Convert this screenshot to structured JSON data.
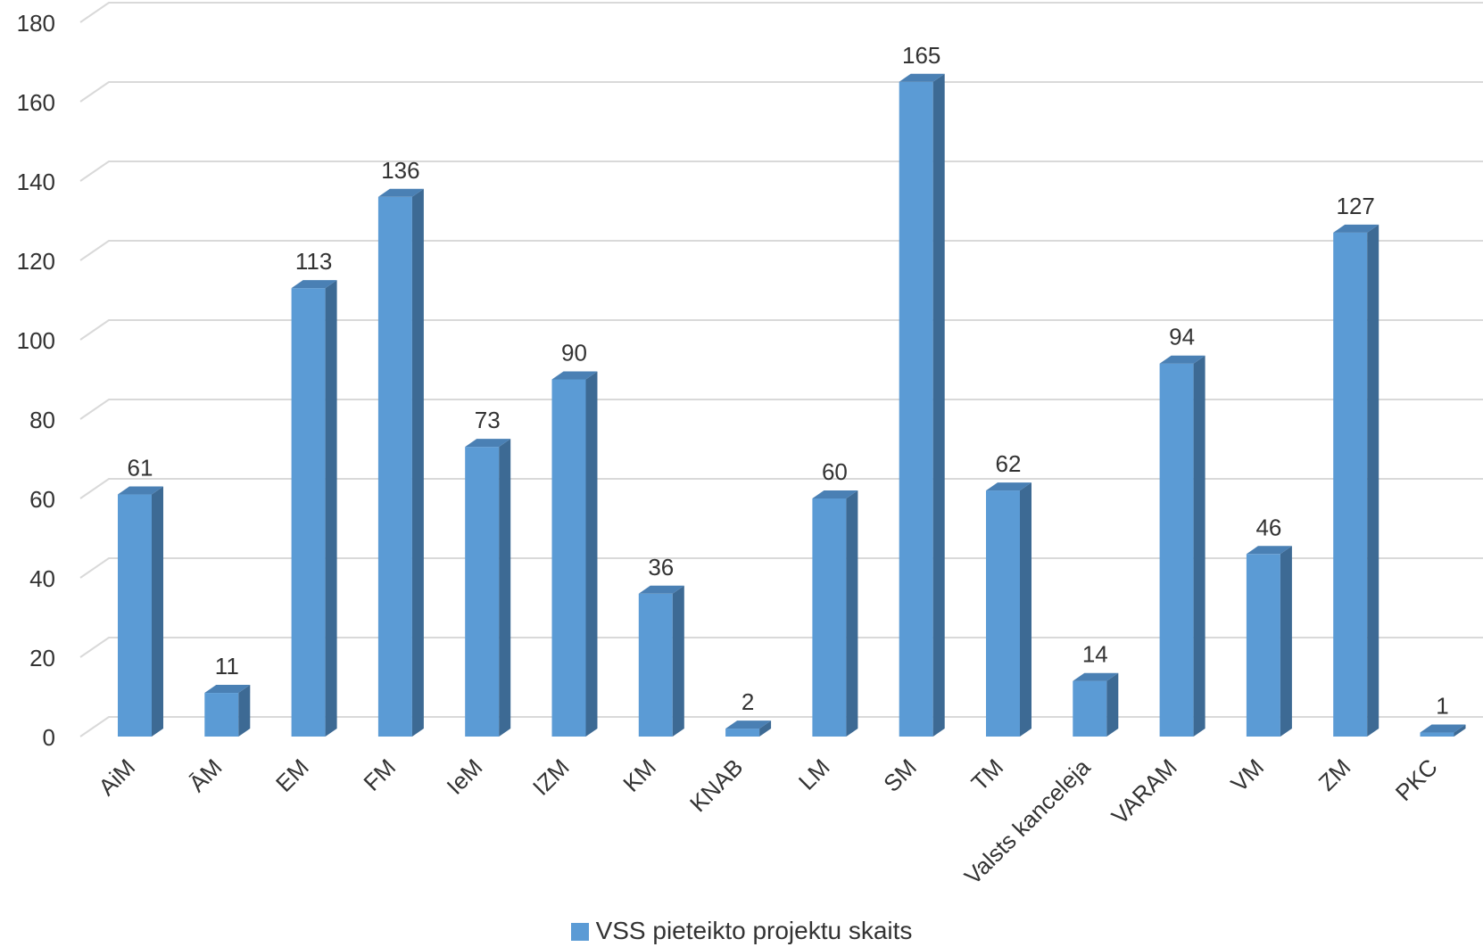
{
  "chart_data": {
    "type": "bar",
    "categories": [
      "AiM",
      "ĀM",
      "EM",
      "FM",
      "IeM",
      "IZM",
      "KM",
      "KNAB",
      "LM",
      "SM",
      "TM",
      "Valsts kanceleja",
      "VARAM",
      "VM",
      "ZM",
      "PKC"
    ],
    "series": [
      {
        "name": "VSS pieteikto projektu skaits",
        "values": [
          61,
          11,
          113,
          136,
          73,
          90,
          36,
          2,
          60,
          165,
          62,
          14,
          94,
          46,
          127,
          1
        ]
      }
    ],
    "ylim": [
      0,
      180
    ],
    "yticks": [
      0,
      20,
      40,
      60,
      80,
      100,
      120,
      140,
      160,
      180
    ],
    "grid": true,
    "legend_position": "bottom",
    "colors": {
      "front": "#5b9bd5",
      "side": "#3d6a94",
      "top": "#4a80b4",
      "grid": "#d9d9d9",
      "text": "#333333"
    }
  }
}
